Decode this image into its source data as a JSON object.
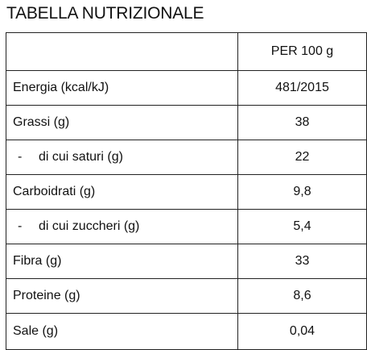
{
  "title": "TABELLA NUTRIZIONALE",
  "table": {
    "header": {
      "label": "",
      "value": "PER 100 g"
    },
    "rows": [
      {
        "label": "Energia (kcal/kJ)",
        "value": "481/2015"
      },
      {
        "label": "Grassi (g)",
        "value": "38"
      },
      {
        "dash": "-",
        "label": "di cui saturi (g)",
        "value": "22"
      },
      {
        "label": "Carboidrati (g)",
        "value": "9,8"
      },
      {
        "dash": "-",
        "label": "di cui zuccheri (g)",
        "value": "5,4"
      },
      {
        "label": "Fibra (g)",
        "value": "33"
      },
      {
        "label": "Proteine (g)",
        "value": "8,6"
      },
      {
        "label": "Sale (g)",
        "value": "0,04"
      }
    ]
  }
}
